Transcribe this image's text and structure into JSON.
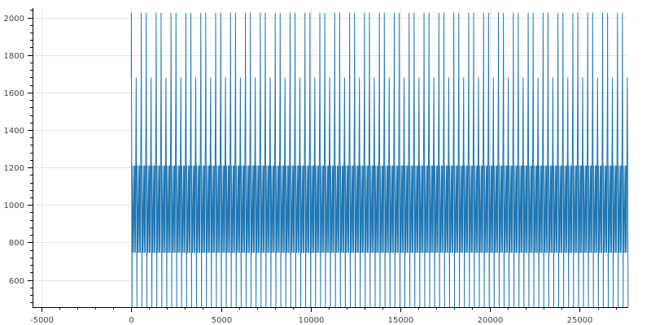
{
  "chart_data": {
    "type": "line",
    "title": "",
    "xlabel": "",
    "ylabel": "",
    "xlim": [
      -5500,
      27700
    ],
    "ylim": [
      455,
      2050
    ],
    "x_ticks": [
      -5000,
      0,
      5000,
      10000,
      15000,
      20000,
      25000
    ],
    "x_tick_labels": [
      "-5000",
      "0",
      "5000",
      "10000",
      "15000",
      "20000",
      "25000"
    ],
    "y_ticks": [
      600,
      800,
      1000,
      1200,
      1400,
      1600,
      1800,
      2000
    ],
    "y_tick_labels": [
      "600",
      "800",
      "1000",
      "1200",
      "1400",
      "1600",
      "1800",
      "2000"
    ],
    "grid": true,
    "legend": "none",
    "series_color": "#1f77b4",
    "series": [
      {
        "x_start": 0,
        "x_end": 27700,
        "period": 276.5,
        "pattern": [
          [
            0,
            1680
          ],
          [
            5,
            2025
          ],
          [
            45,
            455
          ],
          [
            55,
            1210
          ],
          [
            95,
            745
          ],
          [
            150,
            1210
          ],
          [
            172,
            745
          ],
          [
            205,
            1210
          ],
          [
            230,
            745
          ],
          [
            250,
            1210
          ],
          [
            276.5,
            1680
          ]
        ],
        "notes_on_values": "",
        "peak_2025_every_cycle": true,
        "peak_1580_every_nth_cycle": 3,
        "value_range": [
          455,
          2025
        ]
      }
    ]
  }
}
